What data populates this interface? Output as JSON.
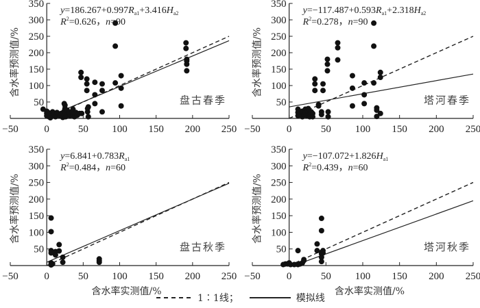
{
  "chart_data": [
    {
      "type": "scatter",
      "site": "盘古春季",
      "equation": "y=186.267+0.997Ra1+3.416Ha2",
      "eq_parts": {
        "prefix": "y",
        "body": "=186.267+0.997",
        "r": "R",
        "rsub": "a1",
        "mid": "+3.416",
        "h": "H",
        "hsub": "a2"
      },
      "stats": {
        "r2_label": "R",
        "r2_sup": "2",
        "r2_text": "=0.626，",
        "n_label": "n",
        "n_text": "=90"
      },
      "ylabel": "含水率预测值/%",
      "xlabel": "",
      "xlim": [
        -50,
        250
      ],
      "ylim": [
        0,
        350
      ],
      "xticks": [
        "−50",
        "0",
        "50",
        "100",
        "150",
        "200",
        "250"
      ],
      "yticks": [
        "50",
        "100",
        "150",
        "200",
        "250",
        "300",
        "350"
      ],
      "fit": {
        "slope": 0.93,
        "intercept": 4
      },
      "points": [
        [
          -5,
          28
        ],
        [
          0,
          22
        ],
        [
          0,
          15
        ],
        [
          0,
          8
        ],
        [
          2,
          18
        ],
        [
          3,
          5
        ],
        [
          4,
          12
        ],
        [
          5,
          2
        ],
        [
          8,
          20
        ],
        [
          10,
          12
        ],
        [
          12,
          5
        ],
        [
          14,
          18
        ],
        [
          18,
          8
        ],
        [
          20,
          15
        ],
        [
          22,
          3
        ],
        [
          24,
          22
        ],
        [
          24,
          45
        ],
        [
          25,
          40
        ],
        [
          25,
          30
        ],
        [
          25,
          12
        ],
        [
          26,
          5
        ],
        [
          28,
          25
        ],
        [
          30,
          18
        ],
        [
          32,
          8
        ],
        [
          34,
          20
        ],
        [
          36,
          12
        ],
        [
          36,
          28
        ],
        [
          38,
          5
        ],
        [
          40,
          18
        ],
        [
          42,
          10
        ],
        [
          45,
          15
        ],
        [
          47,
          140
        ],
        [
          47,
          125
        ],
        [
          48,
          15
        ],
        [
          55,
          120
        ],
        [
          55,
          105
        ],
        [
          55,
          85
        ],
        [
          56,
          30
        ],
        [
          56,
          20
        ],
        [
          57,
          5
        ],
        [
          57,
          35
        ],
        [
          66,
          110
        ],
        [
          66,
          72
        ],
        [
          66,
          45
        ],
        [
          76,
          105
        ],
        [
          76,
          85
        ],
        [
          76,
          20
        ],
        [
          94,
          290
        ],
        [
          94,
          220
        ],
        [
          94,
          108
        ],
        [
          102,
          130
        ],
        [
          102,
          92
        ],
        [
          102,
          38
        ],
        [
          191,
          230
        ],
        [
          191,
          213
        ],
        [
          192,
          180
        ],
        [
          192,
          165
        ],
        [
          192,
          145
        ],
        [
          192,
          175
        ]
      ]
    },
    {
      "type": "scatter",
      "site": "塔河春季",
      "equation": "y=−117.487+0.593Ra1+2.318Ha2",
      "eq_parts": {
        "prefix": "y",
        "body": "=−117.487+0.593",
        "r": "R",
        "rsub": "a1",
        "mid": "+2.318",
        "h": "H",
        "hsub": "a2"
      },
      "stats": {
        "r2_label": "R",
        "r2_sup": "2",
        "r2_text": "=0.278，",
        "n_label": "n",
        "n_text": "=90"
      },
      "ylabel": "含水率预测值/%",
      "xlabel": "",
      "xlim": [
        -50,
        250
      ],
      "ylim": [
        0,
        350
      ],
      "xticks": [
        "−50",
        "0",
        "50",
        "100",
        "150",
        "200",
        "250"
      ],
      "yticks": [
        "50",
        "100",
        "150",
        "200",
        "250",
        "300",
        "350"
      ],
      "fit": {
        "slope": 0.4,
        "intercept": 35
      },
      "points": [
        [
          12,
          28
        ],
        [
          12,
          18
        ],
        [
          12,
          8
        ],
        [
          15,
          15
        ],
        [
          18,
          22
        ],
        [
          18,
          5
        ],
        [
          20,
          12
        ],
        [
          22,
          28
        ],
        [
          22,
          18
        ],
        [
          24,
          8
        ],
        [
          25,
          22
        ],
        [
          26,
          30
        ],
        [
          28,
          12
        ],
        [
          28,
          5
        ],
        [
          30,
          20
        ],
        [
          32,
          15
        ],
        [
          32,
          5
        ],
        [
          35,
          120
        ],
        [
          35,
          105
        ],
        [
          35,
          85
        ],
        [
          40,
          42
        ],
        [
          40,
          38
        ],
        [
          44,
          20
        ],
        [
          44,
          12
        ],
        [
          46,
          105
        ],
        [
          46,
          85
        ],
        [
          52,
          180
        ],
        [
          52,
          165
        ],
        [
          52,
          145
        ],
        [
          53,
          20
        ],
        [
          53,
          5
        ],
        [
          66,
          230
        ],
        [
          66,
          215
        ],
        [
          66,
          178
        ],
        [
          86,
          130
        ],
        [
          86,
          92
        ],
        [
          86,
          38
        ],
        [
          102,
          108
        ],
        [
          102,
          72
        ],
        [
          102,
          45
        ],
        [
          115,
          290
        ],
        [
          115,
          220
        ],
        [
          115,
          108
        ],
        [
          119,
          32
        ],
        [
          119,
          25
        ],
        [
          119,
          6
        ],
        [
          124,
          140
        ],
        [
          124,
          125
        ],
        [
          124,
          15
        ]
      ]
    },
    {
      "type": "scatter",
      "site": "盘古秋季",
      "equation": "y=6.841+0.783Ra1",
      "eq_parts": {
        "prefix": "y",
        "body": "=6.841+0.783",
        "r": "R",
        "rsub": "a1",
        "mid": "",
        "h": "",
        "hsub": ""
      },
      "stats": {
        "r2_label": "R",
        "r2_sup": "2",
        "r2_text": "=0.484，",
        "n_label": "n",
        "n_text": "=60"
      },
      "ylabel": "含水率预测值/%",
      "xlabel": "含水率实测值/%",
      "xlim": [
        -50,
        250
      ],
      "ylim": [
        0,
        350
      ],
      "xticks": [
        "−50",
        "0",
        "50",
        "100",
        "150",
        "200",
        "250"
      ],
      "yticks": [
        "50",
        "100",
        "150",
        "200",
        "250",
        "300",
        "350"
      ],
      "fit": {
        "slope": 0.95,
        "intercept": 10
      },
      "points": [
        [
          6,
          143
        ],
        [
          6,
          102
        ],
        [
          6,
          45
        ],
        [
          6,
          38
        ],
        [
          6,
          8
        ],
        [
          6,
          2
        ],
        [
          8,
          5
        ],
        [
          12,
          42
        ],
        [
          12,
          32
        ],
        [
          17,
          63
        ],
        [
          17,
          44
        ],
        [
          22,
          25
        ],
        [
          22,
          10
        ],
        [
          72,
          20
        ],
        [
          72,
          15
        ],
        [
          72,
          10
        ]
      ]
    },
    {
      "type": "scatter",
      "site": "塔河秋季",
      "equation": "y=−107.072+1.826Ha1",
      "eq_parts": {
        "prefix": "y",
        "body": "=−107.072+1.826",
        "r": "",
        "rsub": "",
        "mid": "",
        "h": "H",
        "hsub": "a1"
      },
      "stats": {
        "r2_label": "R",
        "r2_sup": "2",
        "r2_text": "=0.439，",
        "n_label": "n",
        "n_text": "=60"
      },
      "ylabel": "含水率预测值/%",
      "xlabel": "含水率实测值/%",
      "xlim": [
        -50,
        250
      ],
      "ylim": [
        0,
        350
      ],
      "xticks": [
        "−50",
        "0",
        "50",
        "100",
        "150",
        "200",
        "250"
      ],
      "yticks": [
        "50",
        "100",
        "150",
        "200",
        "250",
        "300",
        "350"
      ],
      "fit": {
        "slope": 0.8,
        "intercept": -5
      },
      "points": [
        [
          -8,
          3
        ],
        [
          -5,
          5
        ],
        [
          -2,
          5
        ],
        [
          0,
          8
        ],
        [
          2,
          3
        ],
        [
          7,
          3
        ],
        [
          12,
          3
        ],
        [
          12,
          45
        ],
        [
          15,
          5
        ],
        [
          18,
          8
        ],
        [
          20,
          15
        ],
        [
          20,
          18
        ],
        [
          38,
          65
        ],
        [
          38,
          45
        ],
        [
          44,
          142
        ],
        [
          44,
          105
        ],
        [
          44,
          40
        ],
        [
          44,
          35
        ],
        [
          44,
          25
        ],
        [
          44,
          12
        ],
        [
          46,
          45
        ],
        [
          46,
          38
        ]
      ]
    }
  ],
  "legend": {
    "ref_label": "1∶1线；",
    "fit_label": "模拟线",
    "placement": "bottom"
  }
}
